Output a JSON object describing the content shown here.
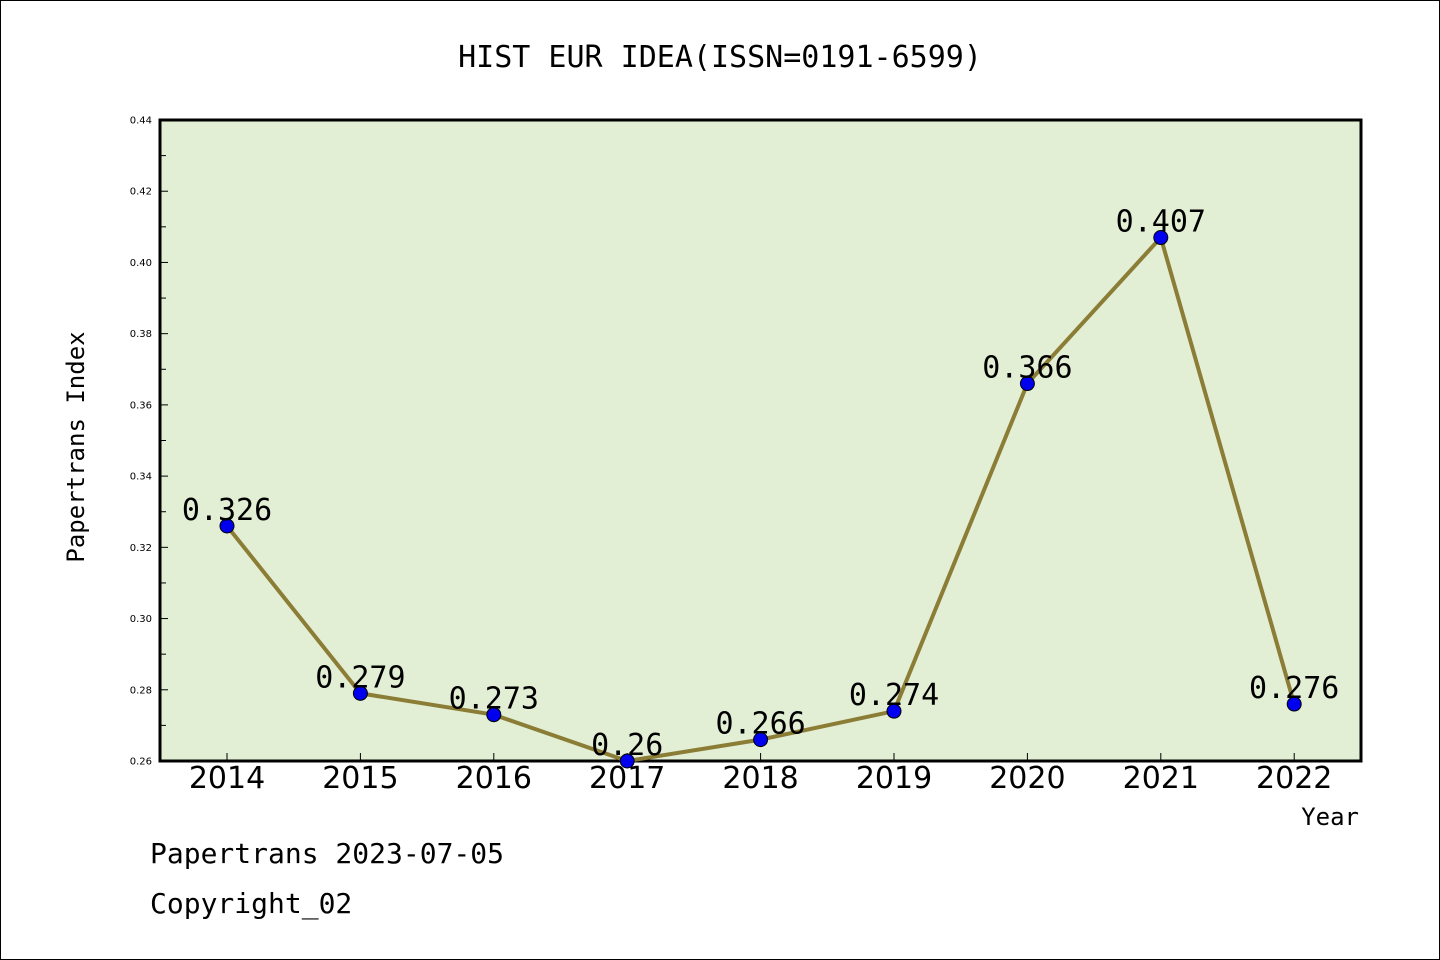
{
  "chart_data": {
    "type": "line",
    "title": "HIST EUR IDEA(ISSN=0191-6599)",
    "xlabel": "Year",
    "ylabel": "Papertrans Index",
    "categories": [
      "2014",
      "2015",
      "2016",
      "2017",
      "2018",
      "2019",
      "2020",
      "2021",
      "2022"
    ],
    "series": [
      {
        "values": [
          0.326,
          0.279,
          0.273,
          0.26,
          0.266,
          0.274,
          0.366,
          0.407,
          0.276
        ],
        "labels": [
          "0.326",
          "0.279",
          "0.273",
          "0.26",
          "0.266",
          "0.274",
          "0.366",
          "0.407",
          "0.276"
        ],
        "line_color": "#8b7d35",
        "marker_color": "#0000ee"
      }
    ],
    "ylim": [
      0.26,
      0.44
    ],
    "yticks": [
      "0.26",
      "0.28",
      "0.30",
      "0.32",
      "0.34",
      "0.36",
      "0.38",
      "0.40",
      "0.42",
      "0.44"
    ],
    "plot_background": "#e2efd5",
    "grid": false,
    "legend": "none"
  },
  "footer": {
    "line1": "Papertrans 2023-07-05",
    "line2": "Copyright_02"
  }
}
